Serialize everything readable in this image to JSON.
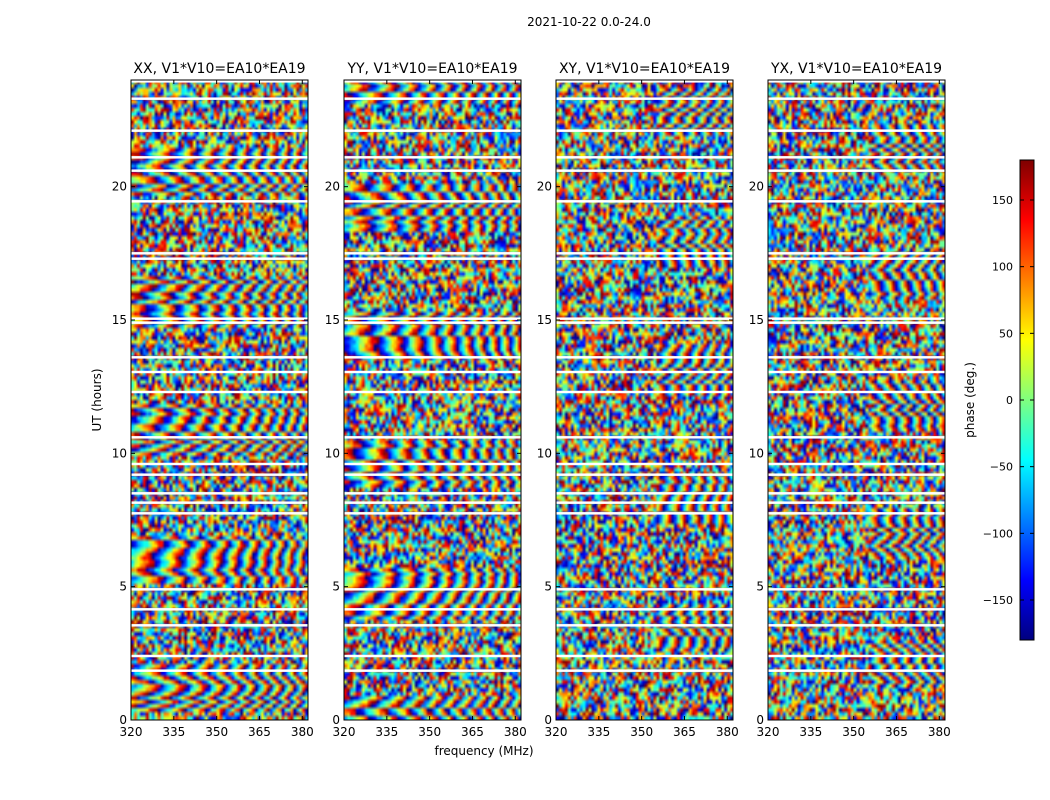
{
  "figure": {
    "suptitle": "2021-10-22 0.0-24.0",
    "xlabel": "frequency (MHz)",
    "ylabel": "UT (hours)"
  },
  "colorbar": {
    "label": "phase (deg.)",
    "colormap": "jet",
    "range": [
      -180,
      180
    ],
    "ticks": [
      -150,
      -100,
      -50,
      0,
      50,
      100,
      150
    ],
    "tick_labels": [
      "−150",
      "−100",
      "−50",
      "0",
      "50",
      "100",
      "150"
    ]
  },
  "chart_data": {
    "type": "heatmap",
    "quantity": "visibility phase (deg.)",
    "x_range": [
      320,
      382
    ],
    "y_range": [
      0,
      24
    ],
    "x_ticks": [
      320,
      335,
      350,
      365,
      380
    ],
    "y_ticks": [
      0,
      5,
      10,
      15,
      20
    ],
    "panels": [
      {
        "title": "XX, V1*V10=EA10*EA19",
        "polarization": "XX"
      },
      {
        "title": "YY, V1*V10=EA10*EA19",
        "polarization": "YY"
      },
      {
        "title": "XY, V1*V10=EA10*EA19",
        "polarization": "XY"
      },
      {
        "title": "YX, V1*V10=EA10*EA19",
        "polarization": "YX"
      }
    ],
    "flagged_gaps_ut": [
      1.85,
      2.4,
      3.55,
      4.15,
      4.9,
      7.75,
      8.15,
      8.5,
      9.2,
      9.6,
      10.6,
      12.3,
      13.05,
      13.6,
      14.9,
      15.05,
      17.3,
      17.5,
      19.45,
      20.6,
      21.1,
      22.1,
      23.3,
      23.95
    ]
  }
}
